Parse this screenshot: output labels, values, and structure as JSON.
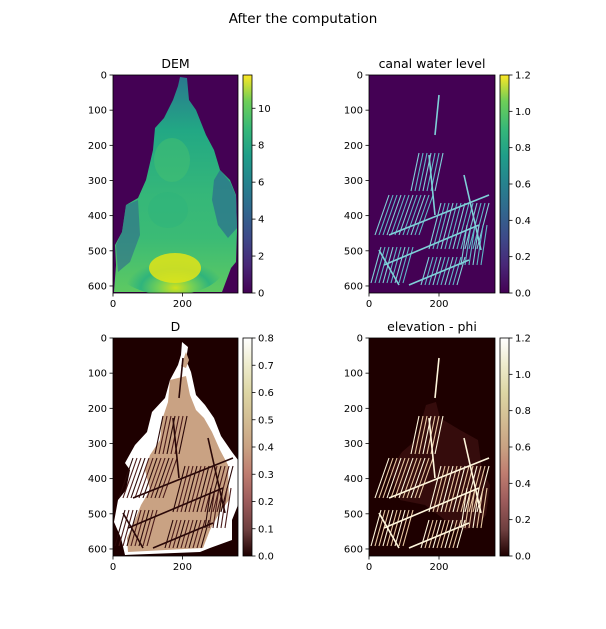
{
  "suptitle": "After the computation",
  "chart_data": [
    {
      "type": "heatmap",
      "title": "DEM",
      "colormap": "viridis",
      "x_ticks": [
        0,
        200
      ],
      "y_ticks": [
        0,
        100,
        200,
        300,
        400,
        500,
        600
      ],
      "xlim": [
        0,
        360
      ],
      "ylim": [
        620,
        0
      ],
      "colorbar": {
        "min": 0,
        "max": 11.8,
        "ticks": [
          0,
          2,
          4,
          6,
          8,
          10
        ]
      }
    },
    {
      "type": "heatmap",
      "title": "canal water level",
      "colormap": "viridis",
      "x_ticks": [
        0,
        200
      ],
      "y_ticks": [
        0,
        100,
        200,
        300,
        400,
        500,
        600
      ],
      "xlim": [
        0,
        360
      ],
      "ylim": [
        620,
        0
      ],
      "colorbar": {
        "min": 0,
        "max": 1.2,
        "ticks": [
          "0.0",
          "0.2",
          "0.4",
          "0.6",
          "0.8",
          "1.0",
          "1.2"
        ]
      }
    },
    {
      "type": "heatmap",
      "title": "D",
      "colormap": "pink",
      "x_ticks": [
        0,
        200
      ],
      "y_ticks": [
        0,
        100,
        200,
        300,
        400,
        500,
        600
      ],
      "xlim": [
        0,
        360
      ],
      "ylim": [
        620,
        0
      ],
      "colorbar": {
        "min": 0,
        "max": 0.8,
        "ticks": [
          "0.0",
          "0.1",
          "0.2",
          "0.3",
          "0.4",
          "0.5",
          "0.6",
          "0.7",
          "0.8"
        ]
      }
    },
    {
      "type": "heatmap",
      "title": "elevation - phi",
      "colormap": "pink",
      "x_ticks": [
        0,
        200
      ],
      "y_ticks": [
        0,
        100,
        200,
        300,
        400,
        500,
        600
      ],
      "xlim": [
        0,
        360
      ],
      "ylim": [
        620,
        0
      ],
      "colorbar": {
        "min": 0,
        "max": 1.2,
        "ticks": [
          "0.0",
          "0.2",
          "0.4",
          "0.6",
          "0.8",
          "1.0",
          "1.2"
        ]
      }
    }
  ]
}
